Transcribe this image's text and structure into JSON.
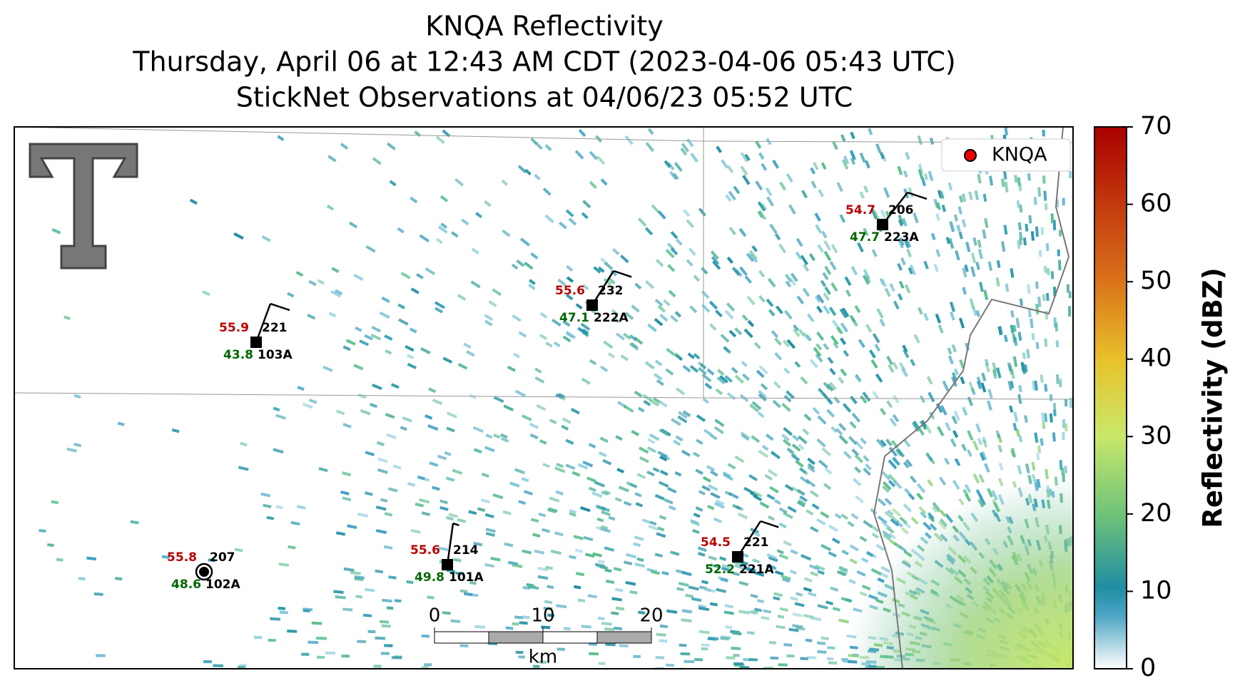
{
  "header": {
    "title": "KNQA Reflectivity",
    "subtitle": "Thursday, April 06 at 12:43 AM CDT (2023-04-06 05:43 UTC)",
    "observation_time": "StickNet Observations at 04/06/23 05:52 UTC"
  },
  "map": {
    "legend": "KNQA",
    "scale_bar": {
      "ticks": [
        0,
        10,
        20
      ],
      "unit": "km"
    },
    "stations": [
      {
        "id": "103A",
        "temperature": 55.9,
        "dewpoint": 43.8,
        "wind_direction": 221
      },
      {
        "id": "222A",
        "temperature": 55.6,
        "dewpoint": 47.1,
        "wind_direction": 232
      },
      {
        "id": "223A",
        "temperature": 54.7,
        "dewpoint": 47.7,
        "wind_direction": 206
      },
      {
        "id": "102A",
        "temperature": 55.8,
        "dewpoint": 48.6,
        "wind_direction": 207
      },
      {
        "id": "101A",
        "temperature": 55.6,
        "dewpoint": 49.8,
        "wind_direction": 214
      },
      {
        "id": "221A",
        "temperature": 54.5,
        "dewpoint": 52.2,
        "wind_direction": 221
      }
    ]
  },
  "colorbar": {
    "label": "Reflectivity (dBZ)",
    "lim": [
      0,
      70
    ],
    "ticks": [
      0,
      10,
      20,
      30,
      40,
      50,
      60,
      70
    ]
  }
}
